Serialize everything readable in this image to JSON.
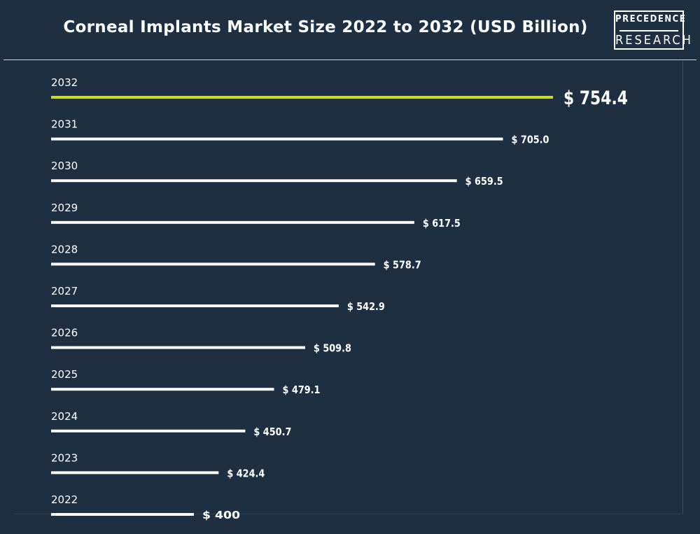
{
  "header": {
    "logo_line1": "PRECEDENCE",
    "logo_line2": "RESEARCH"
  },
  "colors": {
    "background": "#1f2f42",
    "bar": "#ffffff",
    "highlight_bar": "#c6dc1f",
    "text": "#ffffff"
  },
  "chart_data": {
    "type": "bar",
    "orientation": "horizontal",
    "title": "Corneal Implants Market Size 2022 to 2032 (USD Billion)",
    "categories": [
      "2032",
      "2031",
      "2030",
      "2029",
      "2028",
      "2027",
      "2026",
      "2025",
      "2024",
      "2023",
      "2022"
    ],
    "values": [
      754.4,
      705.0,
      659.5,
      617.5,
      578.7,
      542.9,
      509.8,
      479.1,
      450.7,
      424.4,
      400
    ],
    "value_labels": [
      "$ 754.4",
      "$ 705.0",
      "$ 659.5",
      "$ 617.5",
      "$ 578.7",
      "$ 542.9",
      "$ 509.8",
      "$ 479.1",
      "$ 450.7",
      "$ 424.4",
      "$ 400"
    ],
    "highlight_category": "2032",
    "grid": false,
    "legend": "none"
  }
}
